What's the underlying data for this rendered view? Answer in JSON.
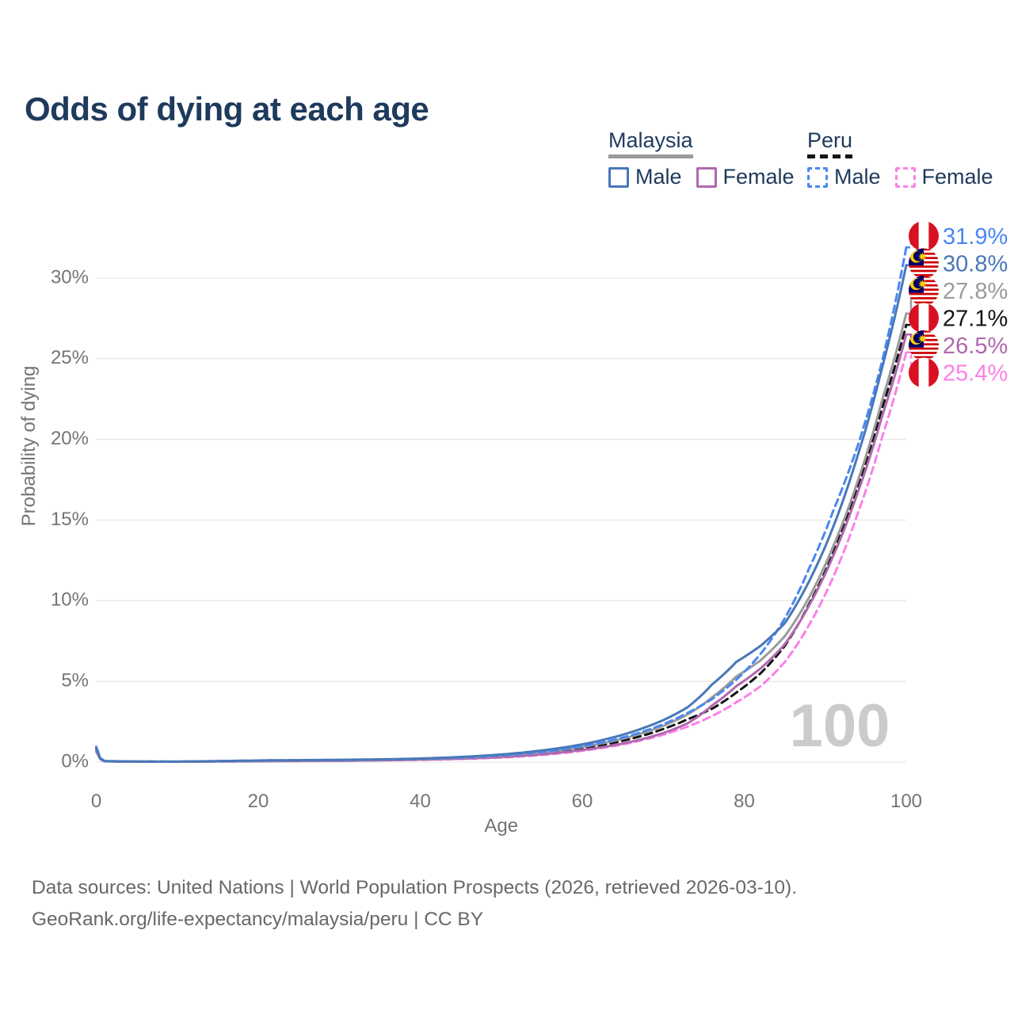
{
  "title": "Odds of dying at each age",
  "watermark_age": "100",
  "legend": {
    "groups": [
      {
        "country": "Malaysia",
        "line_style": "solid",
        "underline_color": "#9b9b9b",
        "items": [
          {
            "label": "Male",
            "color": "#4878b8"
          },
          {
            "label": "Female",
            "color": "#b068ae"
          }
        ]
      },
      {
        "country": "Peru",
        "line_style": "dashed",
        "underline_color": "#141414",
        "items": [
          {
            "label": "Male",
            "color": "#4a87f2"
          },
          {
            "label": "Female",
            "color": "#fb80e8"
          }
        ]
      }
    ]
  },
  "footer": {
    "line1": "Data sources: United Nations | World Population Prospects (2026, retrieved 2026-03-10).",
    "line2": "GeoRank.org/life-expectancy/malaysia/peru | CC BY"
  },
  "colors": {
    "title_text": "#1e3a5c",
    "axis_text": "#757575",
    "gridline": "#e7e7e7",
    "watermark": "#cbcbcb",
    "footer_text": "#686868",
    "peru_flag_red": "#D91023",
    "malaysia_flag_red": "#CC0001",
    "malaysia_flag_blue": "#010066",
    "malaysia_flag_yellow": "#FFCC00"
  },
  "chart_data": {
    "type": "line",
    "title": "Odds of dying at each age",
    "xlabel": "Age",
    "ylabel": "Probability of dying",
    "x_ticks": [
      0,
      20,
      40,
      60,
      80,
      100
    ],
    "y_ticks": [
      0,
      5,
      10,
      15,
      20,
      25,
      30
    ],
    "y_tick_labels": [
      "0%",
      "5%",
      "10%",
      "15%",
      "20%",
      "25%",
      "30%"
    ],
    "xlim": [
      0,
      100
    ],
    "ylim_percent": [
      0,
      30
    ],
    "grid": "horizontal",
    "legend_position": "top-right",
    "ages": [
      0,
      1,
      5,
      10,
      15,
      20,
      25,
      30,
      35,
      40,
      45,
      50,
      55,
      60,
      65,
      70,
      73,
      76,
      79,
      82,
      85,
      88,
      91,
      94,
      97,
      100
    ],
    "series": [
      {
        "id": "peru-female",
        "name": "Peru Female",
        "color": "#fb80e8",
        "dash": true,
        "flag": "peru",
        "end_label": "25.4%",
        "values": [
          0.75,
          0.055,
          0.028,
          0.024,
          0.04,
          0.055,
          0.07,
          0.085,
          0.11,
          0.14,
          0.19,
          0.28,
          0.44,
          0.7,
          1.1,
          1.7,
          2.2,
          2.85,
          3.7,
          4.7,
          6.2,
          8.5,
          11.5,
          15.4,
          20.1,
          25.4
        ]
      },
      {
        "id": "peru-all",
        "name": "Peru",
        "color": "#141414",
        "dash": true,
        "flag": "peru",
        "end_label": "27.1%",
        "values": [
          0.85,
          0.06,
          0.03,
          0.026,
          0.05,
          0.08,
          0.1,
          0.11,
          0.14,
          0.17,
          0.24,
          0.35,
          0.54,
          0.85,
          1.32,
          2.05,
          2.65,
          3.3,
          4.3,
          5.5,
          7.2,
          9.8,
          13.0,
          17.1,
          21.9,
          27.1
        ]
      },
      {
        "id": "malaysia-female",
        "name": "Malaysia Female",
        "color": "#b068ae",
        "dash": false,
        "flag": "malaysia",
        "end_label": "26.5%",
        "values": [
          0.65,
          0.05,
          0.025,
          0.022,
          0.035,
          0.05,
          0.065,
          0.08,
          0.11,
          0.15,
          0.21,
          0.31,
          0.48,
          0.75,
          1.15,
          1.8,
          2.4,
          3.5,
          4.7,
          5.8,
          7.3,
          9.7,
          12.8,
          16.7,
          21.4,
          26.5
        ]
      },
      {
        "id": "malaysia-all",
        "name": "Malaysia",
        "color": "#9b9b9b",
        "dash": false,
        "flag": "malaysia",
        "end_label": "27.8%",
        "values": [
          0.75,
          0.055,
          0.028,
          0.026,
          0.05,
          0.08,
          0.1,
          0.12,
          0.15,
          0.19,
          0.27,
          0.4,
          0.61,
          0.94,
          1.45,
          2.25,
          2.95,
          4.0,
          5.3,
          6.3,
          7.8,
          10.2,
          13.4,
          17.4,
          22.4,
          27.8
        ]
      },
      {
        "id": "peru-male",
        "name": "Peru Male",
        "color": "#4a87f2",
        "dash": true,
        "flag": "peru",
        "end_label": "31.9%",
        "values": [
          0.95,
          0.07,
          0.035,
          0.03,
          0.06,
          0.1,
          0.12,
          0.13,
          0.16,
          0.2,
          0.28,
          0.41,
          0.63,
          0.98,
          1.52,
          2.35,
          3.05,
          3.9,
          5.1,
          6.7,
          8.9,
          12.0,
          15.6,
          19.6,
          24.8,
          31.9
        ]
      },
      {
        "id": "malaysia-male",
        "name": "Malaysia Male",
        "color": "#4878b8",
        "dash": false,
        "flag": "malaysia",
        "end_label": "30.8%",
        "values": [
          0.85,
          0.06,
          0.03,
          0.03,
          0.06,
          0.1,
          0.12,
          0.14,
          0.17,
          0.22,
          0.32,
          0.47,
          0.72,
          1.1,
          1.7,
          2.6,
          3.4,
          4.8,
          6.2,
          7.2,
          8.6,
          11.2,
          14.6,
          19.0,
          24.4,
          30.8
        ]
      }
    ]
  }
}
